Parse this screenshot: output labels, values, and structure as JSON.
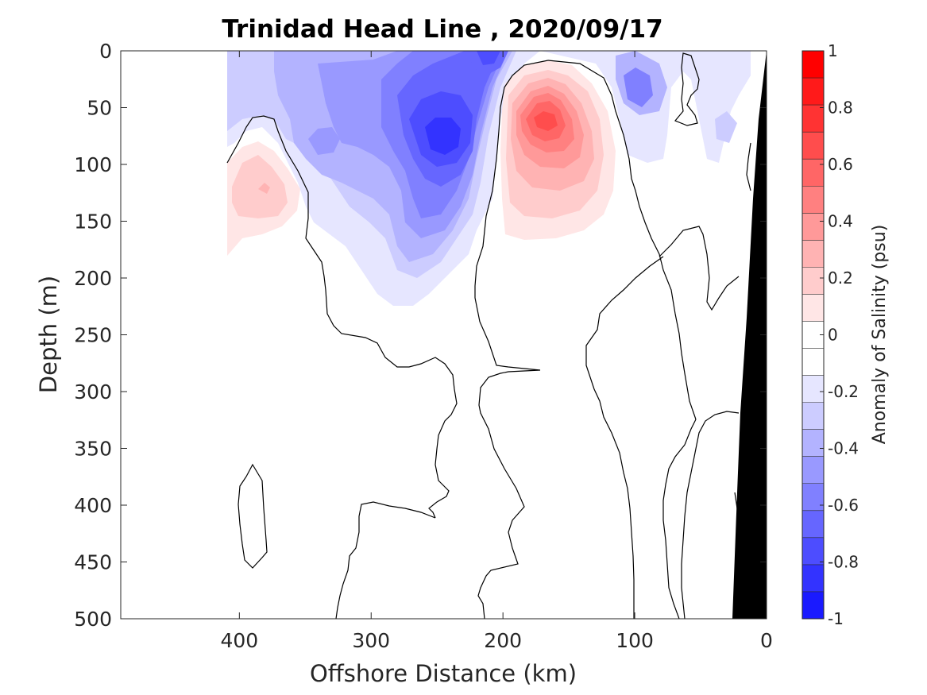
{
  "chart_data": {
    "type": "heatmap",
    "title": "Trinidad Head Line , 2020/09/17",
    "xlabel": "Offshore Distance (km)",
    "ylabel": "Depth (m)",
    "xlim": [
      490,
      0
    ],
    "ylim": [
      0,
      500
    ],
    "x_reversed": true,
    "y_reversed": true,
    "x_ticks": [
      400,
      300,
      200,
      100,
      0
    ],
    "y_ticks": [
      0,
      50,
      100,
      150,
      200,
      250,
      300,
      350,
      400,
      450,
      500
    ],
    "x_tick_labels": [
      "400",
      "300",
      "200",
      "100",
      "0"
    ],
    "y_tick_labels": [
      "0",
      "50",
      "100",
      "150",
      "200",
      "250",
      "300",
      "350",
      "400",
      "450",
      "500"
    ],
    "colorbar": {
      "label": "Anomaly of Salinity (psu)",
      "range": [
        -1,
        1
      ],
      "step": 0.1,
      "ticks": [
        1,
        0.8,
        0.6,
        0.4,
        0.2,
        0,
        -0.2,
        -0.4,
        -0.6,
        -0.8,
        -1
      ],
      "tick_labels": [
        "1",
        "0.8",
        "0.6",
        "0.4",
        "0.2",
        "0",
        "-0.2",
        "-0.4",
        "-0.6",
        "-0.8",
        "-1"
      ],
      "colors_top_to_bottom": [
        "#ff0000",
        "#ff1a1a",
        "#ff3333",
        "#ff4d4d",
        "#ff6666",
        "#ff8080",
        "#ff9999",
        "#ffb3b3",
        "#ffcccc",
        "#ffe6e6",
        "#ffffff",
        "#ffffff",
        "#e6e6ff",
        "#ccccff",
        "#b3b3ff",
        "#9999ff",
        "#8080ff",
        "#6666ff",
        "#4d4dff",
        "#3333ff",
        "#1a1aff"
      ]
    },
    "features": [
      {
        "name": "negative-anomaly-core",
        "x": 245,
        "y": 80,
        "value": -0.8
      },
      {
        "name": "negative-anomaly-surface",
        "x": 205,
        "y": 8,
        "value": -0.6
      },
      {
        "name": "positive-anomaly-core",
        "x": 170,
        "y": 60,
        "value": 0.6
      },
      {
        "name": "positive-anomaly-west",
        "x": 380,
        "y": 120,
        "value": 0.3
      },
      {
        "name": "negative-anomaly-east",
        "x": 95,
        "y": 45,
        "value": -0.5
      }
    ],
    "colors": {
      "positive": "#ff0000",
      "negative": "#0000ff",
      "zero": "#ffffff",
      "bathymetry": "#000000",
      "contour": "#000000"
    }
  }
}
